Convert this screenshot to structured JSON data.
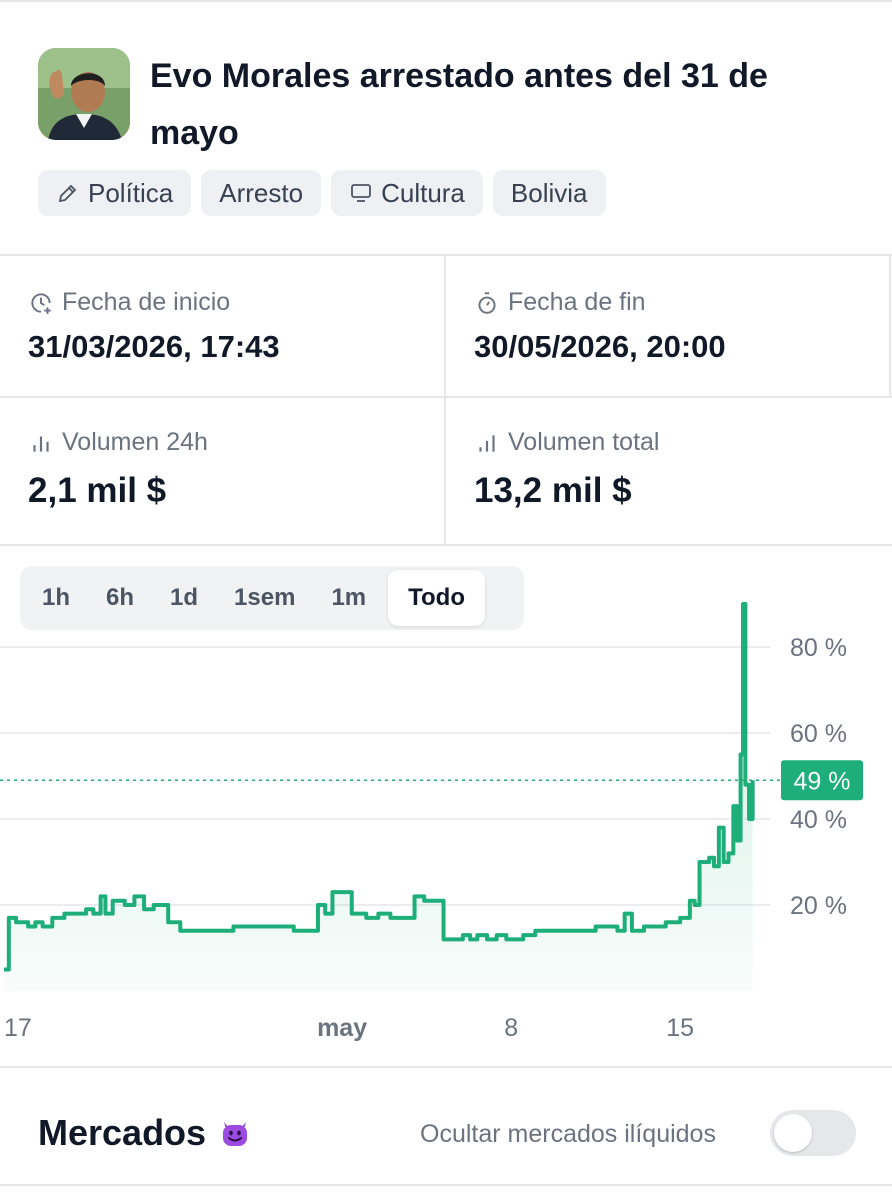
{
  "market": {
    "title": "Evo Morales arrestado antes del 31 de mayo",
    "tags": [
      {
        "label": "Política",
        "icon": "pen-nib-icon"
      },
      {
        "label": "Arresto",
        "icon": ""
      },
      {
        "label": "Cultura",
        "icon": "monitor-icon"
      },
      {
        "label": "Bolivia",
        "icon": ""
      }
    ]
  },
  "stats": {
    "start": {
      "label": "Fecha de inicio",
      "value": "31/03/2026, 17:43"
    },
    "end": {
      "label": "Fecha de fin",
      "value": "30/05/2026, 20:00"
    },
    "volume24h": {
      "label": "Volumen 24h",
      "value": "2,1 mil $"
    },
    "volumeTotal": {
      "label": "Volumen total",
      "value": "13,2 mil $"
    }
  },
  "range_tabs": [
    "1h",
    "6h",
    "1d",
    "1sem",
    "1m",
    "Todo"
  ],
  "active_range": "Todo",
  "chart_data": {
    "type": "area",
    "xlabel": "",
    "ylabel": "",
    "x_ticks": [
      {
        "label": "17",
        "day": 0
      },
      {
        "label": "may",
        "day": 14
      },
      {
        "label": "8",
        "day": 21
      },
      {
        "label": "15",
        "day": 28
      }
    ],
    "y_ticks": [
      "20 %",
      "40 %",
      "60 %",
      "80 %"
    ],
    "ylim": [
      0,
      100
    ],
    "current_label": "49 %",
    "current_value": 49,
    "color": "#1dae7a",
    "series": [
      {
        "values": [
          [
            0,
            5
          ],
          [
            0.2,
            17
          ],
          [
            0.5,
            16
          ],
          [
            1,
            15
          ],
          [
            1.3,
            16
          ],
          [
            1.6,
            15
          ],
          [
            2,
            17
          ],
          [
            2.5,
            18
          ],
          [
            3,
            18
          ],
          [
            3.4,
            19
          ],
          [
            3.7,
            18
          ],
          [
            4,
            22
          ],
          [
            4.2,
            18
          ],
          [
            4.5,
            21
          ],
          [
            5,
            20
          ],
          [
            5.4,
            22
          ],
          [
            5.8,
            19
          ],
          [
            6.2,
            20
          ],
          [
            6.8,
            16
          ],
          [
            7.3,
            14
          ],
          [
            8,
            14
          ],
          [
            9,
            14
          ],
          [
            9.5,
            15
          ],
          [
            10,
            15
          ],
          [
            11,
            15
          ],
          [
            12,
            14
          ],
          [
            12.6,
            14
          ],
          [
            13,
            20
          ],
          [
            13.3,
            18
          ],
          [
            13.6,
            23
          ],
          [
            14,
            23
          ],
          [
            14.4,
            18
          ],
          [
            15,
            17
          ],
          [
            15.5,
            18
          ],
          [
            16,
            17
          ],
          [
            16.5,
            17
          ],
          [
            17,
            22
          ],
          [
            17.4,
            21
          ],
          [
            17.8,
            21
          ],
          [
            18.2,
            12
          ],
          [
            18.7,
            12
          ],
          [
            19,
            13
          ],
          [
            19.3,
            12
          ],
          [
            19.6,
            13
          ],
          [
            20,
            12
          ],
          [
            20.4,
            13
          ],
          [
            20.8,
            12
          ],
          [
            21.5,
            13
          ],
          [
            22,
            14
          ],
          [
            23,
            14
          ],
          [
            24,
            14
          ],
          [
            24.5,
            15
          ],
          [
            25,
            15
          ],
          [
            25.4,
            14
          ],
          [
            25.7,
            18
          ],
          [
            26,
            14
          ],
          [
            26.5,
            15
          ],
          [
            27,
            15
          ],
          [
            27.4,
            16
          ],
          [
            27.7,
            16
          ],
          [
            28,
            17
          ],
          [
            28.4,
            21
          ],
          [
            28.6,
            20
          ],
          [
            28.8,
            30
          ],
          [
            29,
            30
          ],
          [
            29.2,
            31
          ],
          [
            29.4,
            29
          ],
          [
            29.6,
            38
          ],
          [
            29.8,
            30
          ],
          [
            30,
            32
          ],
          [
            30.2,
            43
          ],
          [
            30.35,
            35
          ],
          [
            30.5,
            55
          ],
          [
            30.6,
            90
          ],
          [
            30.7,
            48
          ],
          [
            30.85,
            40
          ],
          [
            31,
            49
          ]
        ]
      }
    ]
  },
  "footer": {
    "title": "Mercados",
    "emoji": "smiling-devil-icon",
    "toggle_label": "Ocultar mercados ilíquidos",
    "toggle_on": false
  }
}
